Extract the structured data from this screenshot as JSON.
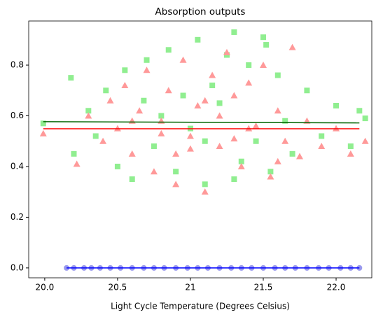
{
  "chart_data": {
    "type": "scatter",
    "title": "Absorption outputs",
    "x_label": "Light Cycle Temperature (Degrees Celsius)",
    "xlim": [
      19.89,
      22.245
    ],
    "ylim": [
      -0.039,
      0.974
    ],
    "xticks": [
      {
        "value": 20,
        "label": "20.0"
      },
      20.5,
      21,
      {
        "value": 21.5,
        "label": "21.5"
      },
      {
        "value": 22,
        "label": "22.0"
      }
    ],
    "yticks": [
      {
        "value": 0,
        "label": "0.0"
      },
      0.2,
      0.4,
      0.6,
      0.8
    ],
    "series": [
      {
        "kind": "scatter",
        "marker": "square",
        "color": "#90ee90",
        "x": [
          19.99,
          20.18,
          20.2,
          20.3,
          20.35,
          20.42,
          20.5,
          20.55,
          20.6,
          20.7,
          20.75,
          20.8,
          20.85,
          20.9,
          20.95,
          21.0,
          21.05,
          21.1,
          21.15,
          21.2,
          21.25,
          21.3,
          21.35,
          21.4,
          21.45,
          21.5,
          21.55,
          21.6,
          21.65,
          21.7,
          21.8,
          21.9,
          22.0,
          22.1,
          22.2,
          22.16,
          21.3,
          21.52,
          20.68,
          21.1
        ],
        "values": [
          0.57,
          0.75,
          0.45,
          0.62,
          0.52,
          0.7,
          0.4,
          0.78,
          0.35,
          0.82,
          0.48,
          0.6,
          0.86,
          0.38,
          0.68,
          0.55,
          0.9,
          0.33,
          0.72,
          0.65,
          0.84,
          0.93,
          0.42,
          0.8,
          0.5,
          0.91,
          0.38,
          0.76,
          0.58,
          0.45,
          0.7,
          0.52,
          0.64,
          0.48,
          0.59,
          0.62,
          0.35,
          0.88,
          0.66,
          0.5
        ]
      },
      {
        "kind": "scatter",
        "marker": "triangle",
        "color": "#ff9999",
        "x": [
          19.99,
          20.22,
          20.3,
          20.4,
          20.45,
          20.5,
          20.55,
          20.6,
          20.65,
          20.7,
          20.75,
          20.8,
          20.85,
          20.9,
          20.95,
          21.0,
          21.05,
          21.1,
          21.15,
          21.2,
          21.25,
          21.3,
          21.35,
          21.4,
          21.45,
          21.5,
          21.55,
          21.6,
          21.65,
          21.7,
          21.75,
          21.8,
          21.9,
          22.0,
          22.1,
          22.2,
          20.8,
          21.2,
          21.0,
          21.4,
          21.6,
          20.6,
          21.3,
          21.1,
          20.9
        ],
        "values": [
          0.53,
          0.41,
          0.6,
          0.5,
          0.66,
          0.55,
          0.72,
          0.45,
          0.62,
          0.78,
          0.38,
          0.58,
          0.7,
          0.33,
          0.82,
          0.52,
          0.64,
          0.3,
          0.76,
          0.48,
          0.85,
          0.68,
          0.4,
          0.73,
          0.56,
          0.8,
          0.36,
          0.62,
          0.5,
          0.87,
          0.44,
          0.58,
          0.48,
          0.55,
          0.45,
          0.5,
          0.53,
          0.6,
          0.47,
          0.55,
          0.42,
          0.58,
          0.51,
          0.66,
          0.45
        ]
      },
      {
        "kind": "scatter",
        "marker": "circle",
        "color": "#9999ee",
        "x": [
          20.15,
          20.2,
          20.27,
          20.32,
          20.38,
          20.45,
          20.52,
          20.6,
          20.68,
          20.75,
          20.82,
          20.9,
          20.98,
          21.05,
          21.12,
          21.2,
          21.28,
          21.35,
          21.42,
          21.5,
          21.58,
          21.65,
          21.72,
          21.8,
          21.88,
          21.95,
          22.03,
          22.1,
          22.16
        ],
        "values": [
          0,
          0,
          0,
          0,
          0,
          0,
          0,
          0,
          0,
          0,
          0,
          0,
          0,
          0,
          0,
          0,
          0,
          0,
          0,
          0,
          0,
          0,
          0,
          0,
          0,
          0,
          0,
          0,
          0
        ]
      },
      {
        "kind": "line",
        "color": "#006400",
        "x": [
          19.99,
          22.16
        ],
        "values": [
          0.577,
          0.572
        ]
      },
      {
        "kind": "line",
        "color": "#ff0000",
        "x": [
          19.99,
          22.16
        ],
        "values": [
          0.549,
          0.549
        ]
      },
      {
        "kind": "line",
        "color": "#0000ff",
        "x": [
          20.15,
          22.16
        ],
        "values": [
          0,
          0
        ]
      }
    ]
  }
}
